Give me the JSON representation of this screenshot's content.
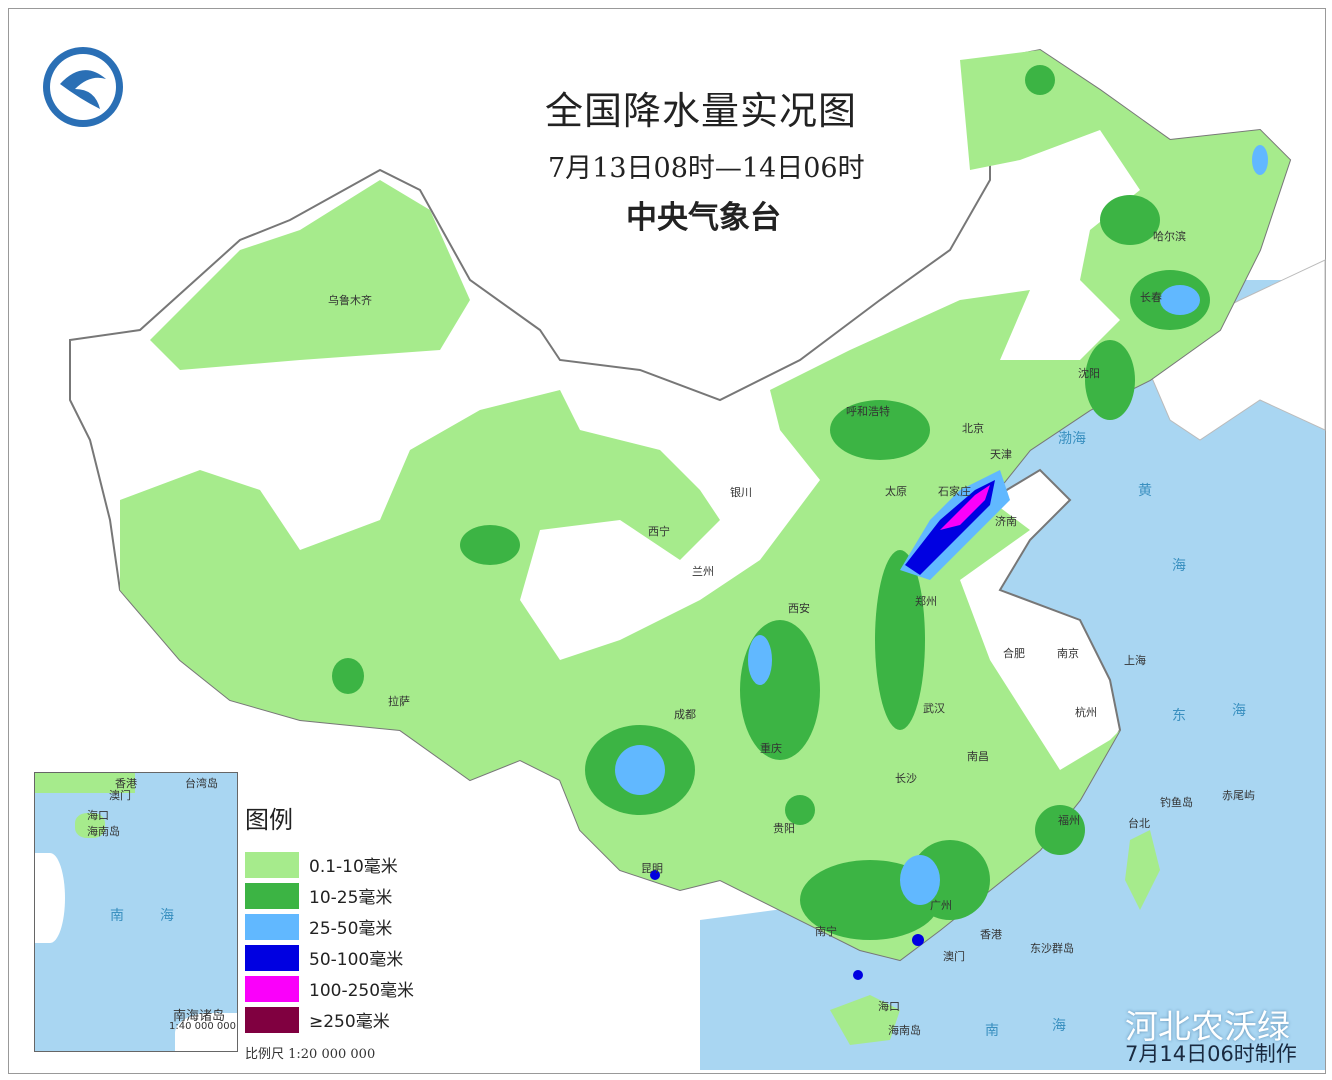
{
  "title": "全国降水量实况图",
  "period": "7月13日08时—14日06时",
  "organization": "中央气象台",
  "logo": "cma-logo",
  "legend": {
    "title": "图例",
    "items": [
      {
        "label": "0.1-10毫米",
        "color": "#a6eb8c"
      },
      {
        "label": "10-25毫米",
        "color": "#3cb444"
      },
      {
        "label": "25-50毫米",
        "color": "#61b8ff"
      },
      {
        "label": "50-100毫米",
        "color": "#0000e1"
      },
      {
        "label": "100-250毫米",
        "color": "#fa00fa"
      },
      {
        "label": "≥250毫米",
        "color": "#800040"
      }
    ],
    "scale": "比例尺    1:20 000 000"
  },
  "cities": [
    "乌鲁木齐",
    "呼和浩特",
    "北京",
    "天津",
    "石家庄",
    "济南",
    "太原",
    "银川",
    "西宁",
    "兰州",
    "西安",
    "郑州",
    "合肥",
    "南京",
    "上海",
    "杭州",
    "武汉",
    "成都",
    "重庆",
    "拉萨",
    "长沙",
    "南昌",
    "福州",
    "台北",
    "贵阳",
    "昆明",
    "南宁",
    "广州",
    "香港",
    "澳门",
    "海口",
    "海南岛",
    "哈尔滨",
    "长春",
    "沈阳",
    "钓鱼岛",
    "赤尾屿",
    "东沙群岛"
  ],
  "seas": [
    "渤海",
    "黄",
    "海",
    "东",
    "海",
    "南",
    "海"
  ],
  "inset": {
    "labels": [
      "香港",
      "澳门",
      "台湾岛",
      "海口",
      "海南岛",
      "南",
      "海"
    ],
    "name": "南海诸岛",
    "scale": "1:40 000 000"
  },
  "watermark": "河北农沃绿",
  "made": "7月14日06时制作"
}
